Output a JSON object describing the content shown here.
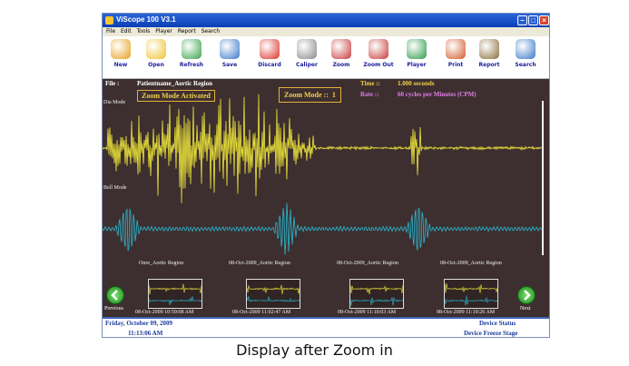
{
  "window": {
    "title": "ViScope 100 V3.1"
  },
  "menu": [
    "File",
    "Edit",
    "Tools",
    "Player",
    "Report",
    "Search"
  ],
  "toolbar": [
    {
      "label": "New",
      "icon": "new-user-icon",
      "color": "#e8a020"
    },
    {
      "label": "Open",
      "icon": "open-folder-icon",
      "color": "#f1c232"
    },
    {
      "label": "Refresh",
      "icon": "refresh-icon",
      "color": "#3aa14a"
    },
    {
      "label": "Save",
      "icon": "save-icon",
      "color": "#3a79c9"
    },
    {
      "label": "Discard",
      "icon": "discard-icon",
      "color": "#d9342b"
    },
    {
      "label": "Caliper",
      "icon": "caliper-icon",
      "color": "#888888"
    },
    {
      "label": "Zoom",
      "icon": "zoom-in-icon",
      "color": "#c83b3b"
    },
    {
      "label": "Zoom Out",
      "icon": "zoom-out-icon",
      "color": "#c83b3b"
    },
    {
      "label": "Player",
      "icon": "player-icon",
      "color": "#2d9a4a"
    },
    {
      "label": "Print",
      "icon": "print-icon",
      "color": "#d45a2a"
    },
    {
      "label": "Report",
      "icon": "report-icon",
      "color": "#8a6d3b"
    },
    {
      "label": "Search",
      "icon": "search-icon",
      "color": "#3a79c9"
    }
  ],
  "screen": {
    "file_label": "File :",
    "file_value": "Patientname_Aortic Region",
    "time_label": "Time ::",
    "time_value": "1.000 seconds",
    "rate_label": "Rate ::",
    "rate_value": "60 cycles per Minutes (CPM)",
    "zoom_activated": "Zoom Mode Activated",
    "zoom_mode_label": "Zoom Mode ::",
    "zoom_mode_value": "1",
    "dia_label": "Dia Mode",
    "bell_label": "Bell Mode"
  },
  "colors": {
    "background": "#3d2f30",
    "dia_wave": "#f2ea3a",
    "bell_wave": "#2bb8d0",
    "info_text": "#ffffff",
    "time_text": "#f2d04a",
    "rate_text": "#e27be8"
  },
  "recordings": [
    {
      "title": "Onre_Aortic Region",
      "date": "08-Oct-2009 10:59:08 AM"
    },
    {
      "title": "08-Oct-2009_Aortic Region",
      "date": "08-Oct-2009 11:02:47 AM"
    },
    {
      "title": "08-Oct-2009_Aortic Region",
      "date": "08-Oct-2009 11:10:03 AM"
    },
    {
      "title": "08-Oct-2009_Aortic Region",
      "date": "08-Oct-2009 11:19:26 AM"
    }
  ],
  "nav": {
    "previous": "Previous",
    "next": "Next"
  },
  "status": {
    "date": "Friday, October 09, 2009",
    "time": "11:13:06 AM",
    "device_status": "Device Status",
    "device_state": "Device Freeze Stage"
  },
  "caption": "Display after Zoom in"
}
